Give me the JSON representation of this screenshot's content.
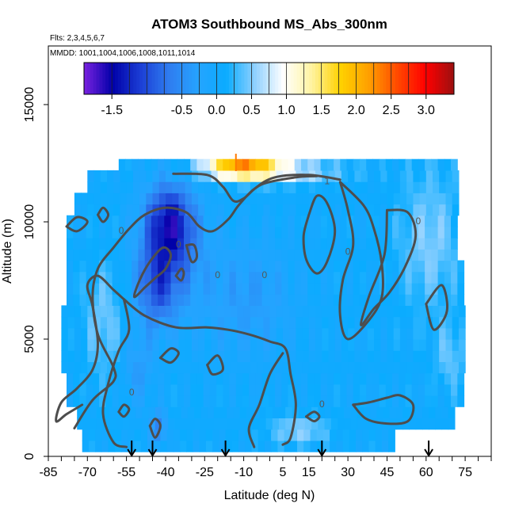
{
  "chart_data": {
    "type": "heatmap",
    "title": "ATOM3 Southbound MS_Abs_300nm",
    "subtitle_flights": "Flts: 2,3,4,5,6,7",
    "subtitle_dates": "MMDD: 1001,1004,1006,1008,1011,1014",
    "xlabel": "Latitude (deg N)",
    "ylabel": "Altitude (m)",
    "xlim": [
      -85,
      85
    ],
    "ylim": [
      0,
      17500
    ],
    "x_ticks": [
      -85,
      -70,
      -55,
      -40,
      -25,
      -10,
      5,
      15,
      30,
      45,
      60,
      75
    ],
    "y_ticks": [
      0,
      5000,
      10000,
      15000
    ],
    "colorbar": {
      "range": [
        -1.9,
        3.4
      ],
      "tick_values": [
        -1.5,
        -0.5,
        0.0,
        0.5,
        1.0,
        1.5,
        2.0,
        2.5,
        3.0
      ],
      "tick_labels": [
        "-1.5",
        "-0.5",
        "0.0",
        "0.5",
        "1.0",
        "1.5",
        "2.0",
        "2.5",
        "3.0"
      ],
      "colors": [
        "#7a22e0",
        "#0000a8",
        "#1c3fd6",
        "#2f7df0",
        "#26a3ff",
        "#0aacff",
        "#8fd0ff",
        "#ffffff",
        "#fff3a0",
        "#ffd200",
        "#ffa000",
        "#ff4a00",
        "#ff0000",
        "#9c1010"
      ]
    },
    "contour_labels": [
      "1",
      "0",
      "0",
      "0",
      "0",
      "0",
      "0",
      "0",
      "0"
    ],
    "arrow_latitudes": [
      -53,
      -45,
      -17,
      20,
      61
    ],
    "orange_marker": {
      "latitude": -13,
      "altitude": 12500
    },
    "field": [
      {
        "alt": 12000,
        "lat_range": [
          -40,
          30
        ],
        "value": 0.9
      },
      {
        "alt": 12000,
        "lat_range": [
          -35,
          25
        ],
        "peak": 1.6
      },
      {
        "alt": 9500,
        "lat_range": [
          -50,
          -35
        ],
        "value": -1.4
      },
      {
        "alt": 7000,
        "lat_range": [
          -55,
          -30
        ],
        "value": -0.9
      },
      {
        "alt": 5000,
        "lat_range": [
          -80,
          70
        ],
        "value": 0.0
      },
      {
        "alt": 1000,
        "lat_range": [
          -70,
          50
        ],
        "value": 0.0
      }
    ]
  }
}
